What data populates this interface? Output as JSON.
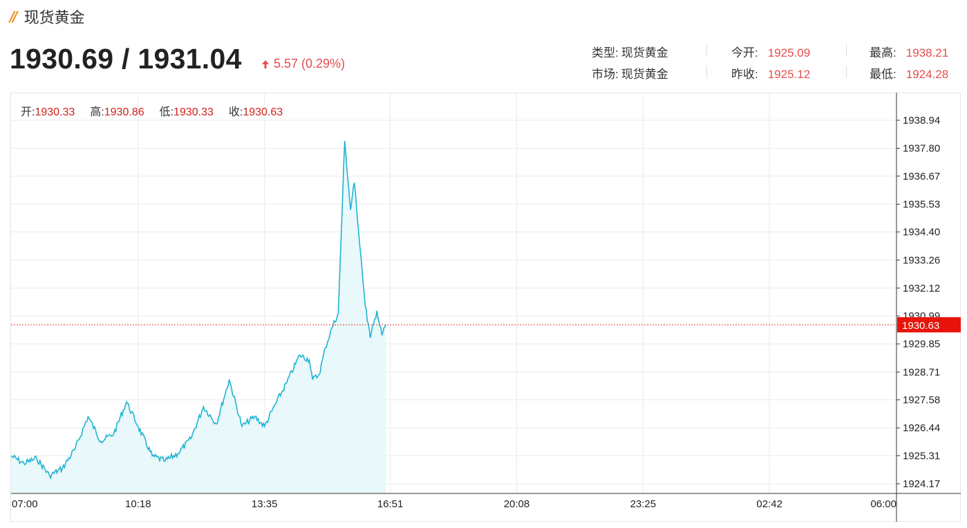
{
  "header": {
    "title": "现货黄金",
    "price": "1930.69 / 1931.04",
    "change": "5.57 (0.29%)",
    "colors": {
      "accent": "#f08a1c",
      "up": "#e74c4c",
      "line": "#1fb3d2",
      "fill": "#e8f8fb"
    }
  },
  "info": {
    "type_label": "类型:",
    "type_value": "现货黄金",
    "market_label": "市场:",
    "market_value": "现货黄金",
    "open_label": "今开:",
    "open_value": "1925.09",
    "prev_close_label": "昨收:",
    "prev_close_value": "1925.12",
    "high_label": "最高:",
    "high_value": "1938.21",
    "low_label": "最低:",
    "low_value": "1924.28"
  },
  "ohlc": {
    "open_label": "开:",
    "open_value": "1930.33",
    "high_label": "高:",
    "high_value": "1930.86",
    "low_label": "低:",
    "low_value": "1930.33",
    "close_label": "收:",
    "close_value": "1930.63"
  },
  "chart_data": {
    "type": "area",
    "title": "",
    "xlabel": "",
    "ylabel": "",
    "x_ticks": [
      "07:00",
      "10:18",
      "13:35",
      "16:51",
      "20:08",
      "23:25",
      "02:42",
      "06:00"
    ],
    "y_ticks": [
      "1938.94",
      "1937.80",
      "1936.67",
      "1935.53",
      "1934.40",
      "1933.26",
      "1932.12",
      "1930.99",
      "1929.85",
      "1928.71",
      "1927.58",
      "1926.44",
      "1925.31",
      "1924.17"
    ],
    "ylim": [
      1923.6,
      1939.5
    ],
    "current_price_label": "1930.63",
    "current_price": 1930.63,
    "grid": true,
    "series": [
      {
        "x": [
          "07:00",
          "07:20",
          "07:40",
          "08:00",
          "08:20",
          "08:40",
          "09:00",
          "09:20",
          "09:40",
          "10:00",
          "10:18",
          "10:40",
          "11:00",
          "11:20",
          "11:40",
          "12:00",
          "12:20",
          "12:40",
          "13:00",
          "13:20",
          "13:35",
          "13:50",
          "14:10",
          "14:30",
          "14:45",
          "14:50",
          "15:00",
          "15:10",
          "15:20",
          "15:30",
          "15:40",
          "15:49",
          "15:55",
          "16:05",
          "16:12",
          "16:20",
          "16:30",
          "16:38",
          "16:44"
        ],
        "values": [
          1925.3,
          1925.0,
          1925.2,
          1924.5,
          1924.8,
          1925.6,
          1926.9,
          1925.9,
          1926.2,
          1927.5,
          1926.5,
          1925.3,
          1925.1,
          1925.4,
          1926.0,
          1927.3,
          1926.6,
          1928.4,
          1926.5,
          1926.9,
          1926.5,
          1927.3,
          1928.3,
          1929.4,
          1929.2,
          1928.4,
          1928.6,
          1929.7,
          1930.5,
          1931.1,
          1938.1,
          1935.3,
          1936.4,
          1933.5,
          1931.4,
          1930.1,
          1931.2,
          1930.2,
          1930.63
        ]
      }
    ]
  }
}
